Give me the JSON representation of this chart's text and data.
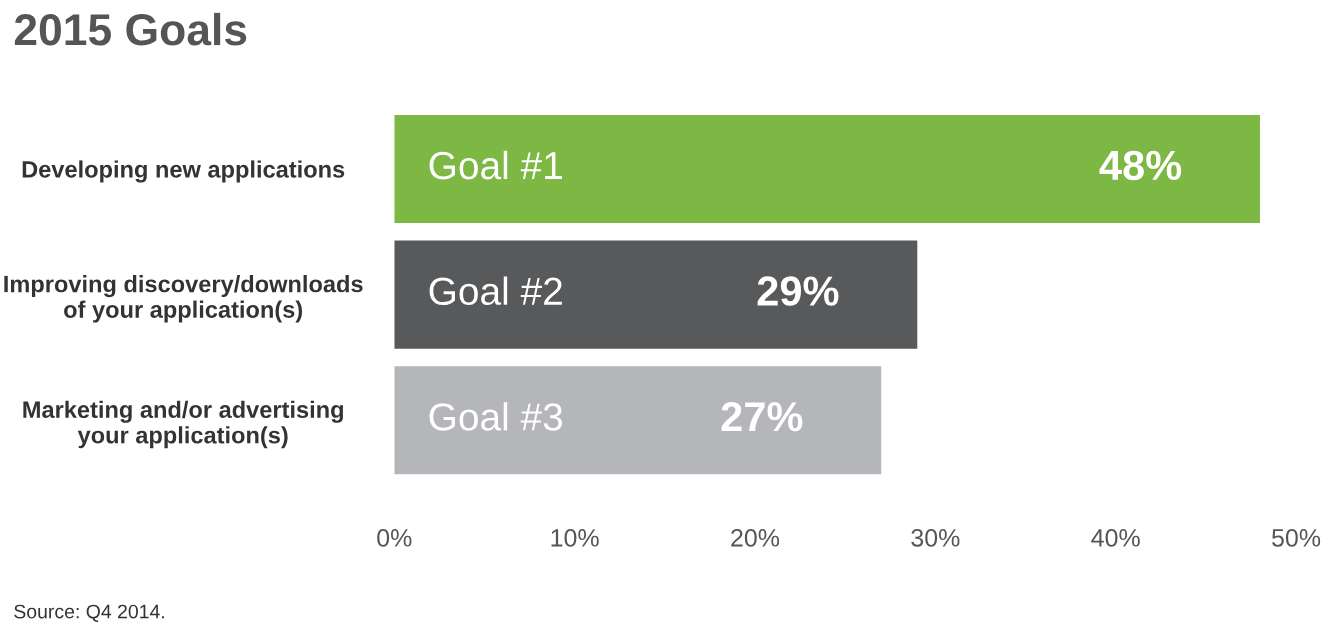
{
  "chart_data": {
    "type": "bar",
    "orientation": "horizontal",
    "title": "2015 Goals",
    "categories": [
      "Developing new applications",
      "Improving discovery/downloads\nof your application(s)",
      "Marketing and/or advertising\nyour application(s)"
    ],
    "values": [
      48,
      29,
      27
    ],
    "colors": [
      "#7cb843",
      "#58595b",
      "#b5b6b9"
    ],
    "value_labels": [
      "48%",
      "29%",
      "27%"
    ],
    "annotations": [
      "Goal #1",
      "Goal #2",
      "Goal #3",
      "Source: Q4 2014."
    ],
    "xlim": [
      0,
      50
    ],
    "xticks": [
      {
        "value": 0,
        "label": "0%"
      },
      {
        "value": 10,
        "label": "10%"
      },
      {
        "value": 20,
        "label": "20%"
      },
      {
        "value": 30,
        "label": "30%"
      },
      {
        "value": 40,
        "label": "40%"
      },
      {
        "value": 50,
        "label": "50%"
      }
    ],
    "grid": false
  }
}
